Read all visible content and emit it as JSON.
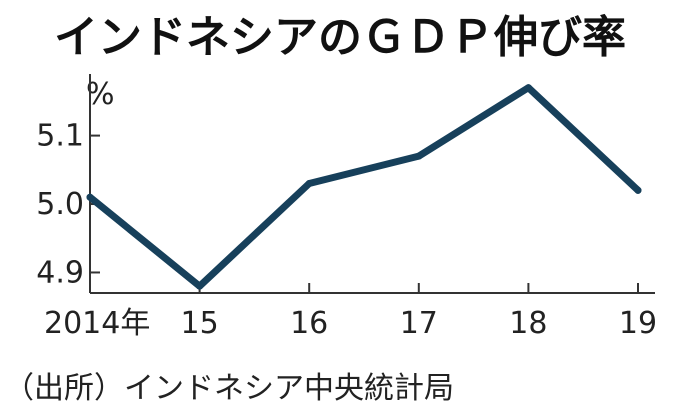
{
  "chart_data": {
    "type": "line",
    "title": "インドネシアのＧＤＰ伸び率",
    "ylabel": "%",
    "xlabel": "",
    "x": [
      "2014年",
      "15",
      "16",
      "17",
      "18",
      "19"
    ],
    "series": [
      {
        "values": [
          5.01,
          4.88,
          5.03,
          5.07,
          5.17,
          5.02
        ]
      }
    ],
    "yticks": [
      "5.1",
      "5.0",
      "4.9"
    ],
    "ytick_values": [
      5.1,
      5.0,
      4.9
    ],
    "ylim": [
      4.87,
      5.19
    ],
    "grid": false,
    "line_color": "#17405b",
    "source": "（出所）インドネシア中央統計局"
  }
}
